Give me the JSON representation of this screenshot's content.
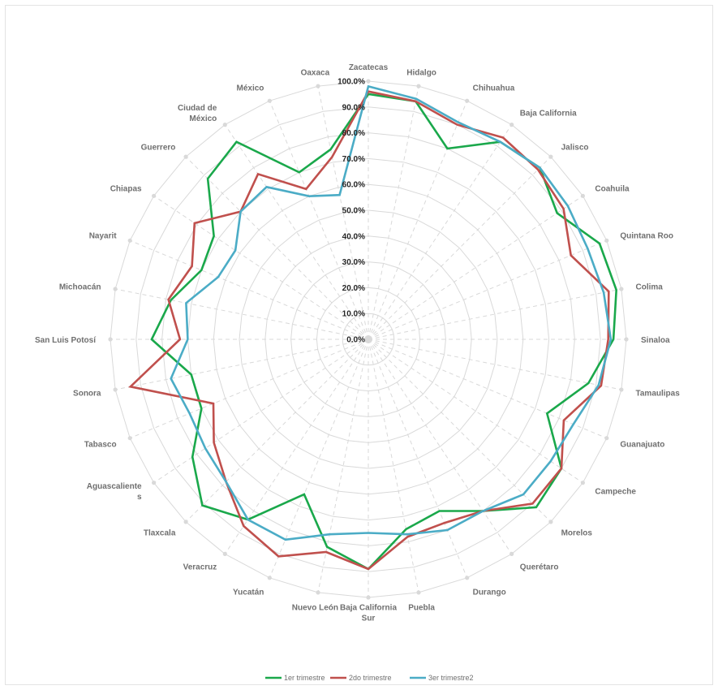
{
  "chart_data": {
    "type": "radar",
    "categories": [
      "Zacatecas",
      "Hidalgo",
      "Chihuahua",
      "Baja California",
      "Jalisco",
      "Coahuila",
      "Quintana Roo",
      "Colima",
      "Sinaloa",
      "Tamaulipas",
      "Guanajuato",
      "Campeche",
      "Morelos",
      "Querétaro",
      "Durango",
      "Puebla",
      "Baja California Sur",
      "Nuevo León",
      "Yucatán",
      "Veracruz",
      "Tlaxcala",
      "Aguascalientes",
      "Tabasco",
      "Sonora",
      "San Luis Potosí",
      "Michoacán",
      "Nayarit",
      "Chiapas",
      "Guerrero",
      "Ciudad de México",
      "México",
      "Oaxaca"
    ],
    "category_lines": [
      [
        "Zacatecas"
      ],
      [
        "Hidalgo"
      ],
      [
        "Chihuahua"
      ],
      [
        "Baja California"
      ],
      [
        "Jalisco"
      ],
      [
        "Coahuila"
      ],
      [
        "Quintana Roo"
      ],
      [
        "Colima"
      ],
      [
        "Sinaloa"
      ],
      [
        "Tamaulipas"
      ],
      [
        "Guanajuato"
      ],
      [
        "Campeche"
      ],
      [
        "Morelos"
      ],
      [
        "Querétaro"
      ],
      [
        "Durango"
      ],
      [
        "Puebla"
      ],
      [
        "Baja California",
        "Sur"
      ],
      [
        "Nuevo León"
      ],
      [
        "Yucatán"
      ],
      [
        "Veracruz"
      ],
      [
        "Tlaxcala"
      ],
      [
        "Aguascaliente",
        "s"
      ],
      [
        "Tabasco"
      ],
      [
        "Sonora"
      ],
      [
        "San Luis Potosí"
      ],
      [
        "Michoacán"
      ],
      [
        "Nayarit"
      ],
      [
        "Chiapas"
      ],
      [
        "Guerrero"
      ],
      [
        "Ciudad de",
        "México"
      ],
      [
        "México"
      ],
      [
        "Oaxaca"
      ]
    ],
    "radial_ticks": [
      "0.0%",
      "10.0%",
      "20.0%",
      "30.0%",
      "40.0%",
      "50.0%",
      "60.0%",
      "70.0%",
      "80.0%",
      "90.0%",
      "100.0%"
    ],
    "rmax": 100,
    "grid": true,
    "legend_position": "bottom",
    "series": [
      {
        "name": "1er trimestre",
        "color": "#1aa84b",
        "values": [
          95,
          94,
          80,
          92,
          94,
          88,
          97,
          98,
          95,
          87,
          75,
          90,
          92,
          80,
          72,
          75,
          89,
          82,
          65,
          84,
          91,
          82,
          70,
          70,
          84,
          78,
          70,
          72,
          88,
          92,
          70,
          75
        ]
      },
      {
        "name": "2do trimestre",
        "color": "#c0504d",
        "values": [
          96,
          94,
          90,
          94,
          93,
          91,
          85,
          95,
          93,
          92,
          82,
          90,
          90,
          80,
          77,
          78,
          89,
          84,
          91,
          87,
          78,
          72,
          65,
          94,
          73,
          79,
          74,
          81,
          70,
          77,
          63,
          72
        ]
      },
      {
        "name": "3er trimestre2",
        "color": "#4bacc6",
        "values": [
          98,
          95,
          91,
          92,
          94,
          93,
          92,
          93,
          94,
          91,
          86,
          85,
          85,
          80,
          80,
          77,
          75,
          77,
          84,
          84,
          78,
          76,
          75,
          78,
          70,
          72,
          63,
          62,
          70,
          71,
          60,
          57
        ]
      }
    ]
  }
}
